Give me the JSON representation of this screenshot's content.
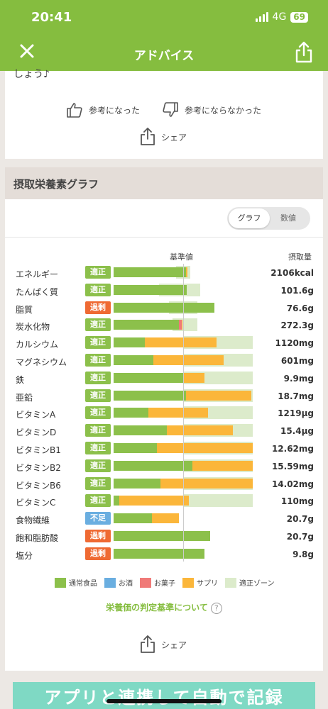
{
  "status": {
    "time": "20:41",
    "network": "4G",
    "battery": "69"
  },
  "nav": {
    "title": "アドバイス"
  },
  "advice": {
    "cut_text": "しょう♪",
    "helpful_label": "参考になった",
    "not_helpful_label": "参考にならなかった",
    "share_label": "シェア"
  },
  "graph": {
    "title": "摂取栄養素グラフ",
    "toggle_graph": "グラフ",
    "toggle_value": "数値",
    "header_standard": "基準値",
    "header_intake": "摂取量",
    "criteria_link": "栄養価の判定基準について",
    "share_label": "シェア",
    "legend": [
      {
        "label": "通常食品",
        "color": "#8cc04b"
      },
      {
        "label": "お酒",
        "color": "#6aaee0"
      },
      {
        "label": "お菓子",
        "color": "#f07a78"
      },
      {
        "label": "サプリ",
        "color": "#fbb63a"
      },
      {
        "label": "適正ゾーン",
        "color": "#dcebcb"
      }
    ],
    "status_colors": {
      "適正": "#8cc04b",
      "過剰": "#ef6a33",
      "不足": "#6aaee0"
    },
    "rows": [
      {
        "name": "エネルギー",
        "status": "適正",
        "amount": "2106kcal",
        "zone": [
          0.9,
          1.1
        ],
        "normal": 1.04,
        "alcohol": 0,
        "sweets": 0,
        "supplement": 0.02
      },
      {
        "name": "たんぱく質",
        "status": "適正",
        "amount": "101.6g",
        "zone": [
          0.65,
          1.25
        ],
        "normal": 1.05,
        "alcohol": 0,
        "sweets": 0,
        "supplement": 0
      },
      {
        "name": "脂質",
        "status": "過剰",
        "amount": "76.6g",
        "zone": [
          0.8,
          1.2
        ],
        "normal": 1.45,
        "alcohol": 0,
        "sweets": 0,
        "supplement": 0
      },
      {
        "name": "炭水化物",
        "status": "適正",
        "amount": "272.3g",
        "zone": [
          0.85,
          1.2
        ],
        "normal": 0.94,
        "alcohol": 0,
        "sweets": 0.04,
        "supplement": 0.01
      },
      {
        "name": "カルシウム",
        "status": "適正",
        "amount": "1120mg",
        "zone": [
          1.0,
          2.0
        ],
        "normal": 0.45,
        "alcohol": 0,
        "sweets": 0,
        "supplement": 1.03
      },
      {
        "name": "マグネシウム",
        "status": "適正",
        "amount": "601mg",
        "zone": [
          1.0,
          2.0
        ],
        "normal": 0.57,
        "alcohol": 0,
        "sweets": 0,
        "supplement": 1.01
      },
      {
        "name": "鉄",
        "status": "適正",
        "amount": "9.9mg",
        "zone": [
          1.0,
          2.0
        ],
        "normal": 1.0,
        "alcohol": 0,
        "sweets": 0,
        "supplement": 0.31
      },
      {
        "name": "亜鉛",
        "status": "適正",
        "amount": "18.7mg",
        "zone": [
          1.0,
          2.0
        ],
        "normal": 1.04,
        "alcohol": 0,
        "sweets": 0,
        "supplement": 0.94
      },
      {
        "name": "ビタミンA",
        "status": "適正",
        "amount": "1219μg",
        "zone": [
          1.0,
          2.0
        ],
        "normal": 0.5,
        "alcohol": 0,
        "sweets": 0,
        "supplement": 0.86
      },
      {
        "name": "ビタミンD",
        "status": "適正",
        "amount": "15.4μg",
        "zone": [
          1.0,
          2.0
        ],
        "normal": 0.77,
        "alcohol": 0,
        "sweets": 0,
        "supplement": 0.94
      },
      {
        "name": "ビタミンB1",
        "status": "適正",
        "amount": "12.62mg",
        "zone": [
          1.0,
          2.0
        ],
        "normal": 0.62,
        "alcohol": 0,
        "sweets": 0,
        "supplement": 1.38
      },
      {
        "name": "ビタミンB2",
        "status": "適正",
        "amount": "15.59mg",
        "zone": [
          1.0,
          2.0
        ],
        "normal": 1.13,
        "alcohol": 0,
        "sweets": 0,
        "supplement": 0.87
      },
      {
        "name": "ビタミンB6",
        "status": "適正",
        "amount": "14.02mg",
        "zone": [
          1.0,
          2.0
        ],
        "normal": 0.67,
        "alcohol": 0,
        "sweets": 0,
        "supplement": 1.33
      },
      {
        "name": "ビタミンC",
        "status": "適正",
        "amount": "110mg",
        "zone": [
          1.0,
          2.0
        ],
        "normal": 0.08,
        "alcohol": 0,
        "sweets": 0,
        "supplement": 1.0
      },
      {
        "name": "食物繊維",
        "status": "不足",
        "amount": "20.7g",
        "zone": [
          1.0,
          1.0
        ],
        "normal": 0.55,
        "alcohol": 0,
        "sweets": 0,
        "supplement": 0.39
      },
      {
        "name": "飽和脂肪酸",
        "status": "過剰",
        "amount": "20.7g",
        "zone": [
          1.0,
          1.0
        ],
        "normal": 1.39,
        "alcohol": 0,
        "sweets": 0,
        "supplement": 0
      },
      {
        "name": "塩分",
        "status": "過剰",
        "amount": "9.8g",
        "zone": [
          1.0,
          1.0
        ],
        "normal": 1.31,
        "alcohol": 0,
        "sweets": 0,
        "supplement": 0
      }
    ]
  },
  "banner": {
    "text": "アプリと連携して自動で記録"
  }
}
